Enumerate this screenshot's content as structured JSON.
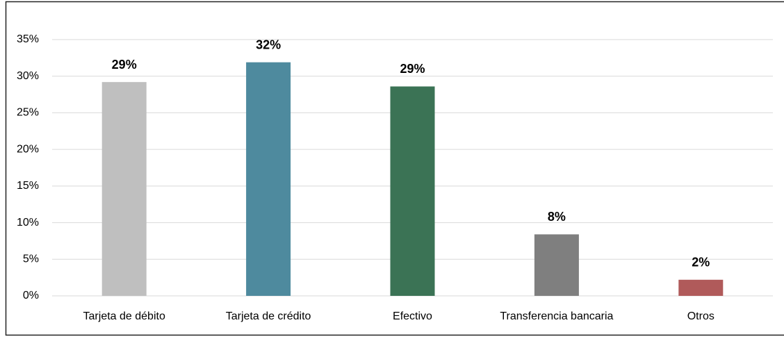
{
  "chart_data": {
    "type": "bar",
    "categories": [
      "Tarjeta de débito",
      "Tarjeta de crédito",
      "Efectivo",
      "Transferencia bancaria",
      "Otros"
    ],
    "values": [
      29.2,
      31.9,
      28.6,
      8.4,
      2.2
    ],
    "value_labels": [
      "29%",
      "32%",
      "29%",
      "8%",
      "2%"
    ],
    "colors": [
      "#bfbfbf",
      "#4e8a9e",
      "#3b7355",
      "#7f7f7f",
      "#b05a5a"
    ],
    "ylim": [
      0,
      35
    ],
    "yticks": [
      {
        "value": 0,
        "label": "0%"
      },
      {
        "value": 5,
        "label": "5%"
      },
      {
        "value": 10,
        "label": "10%"
      },
      {
        "value": 15,
        "label": "15%"
      },
      {
        "value": 20,
        "label": "20%"
      },
      {
        "value": 25,
        "label": "25%"
      },
      {
        "value": 30,
        "label": "30%"
      },
      {
        "value": 35,
        "label": "35%"
      }
    ],
    "grid": true
  }
}
